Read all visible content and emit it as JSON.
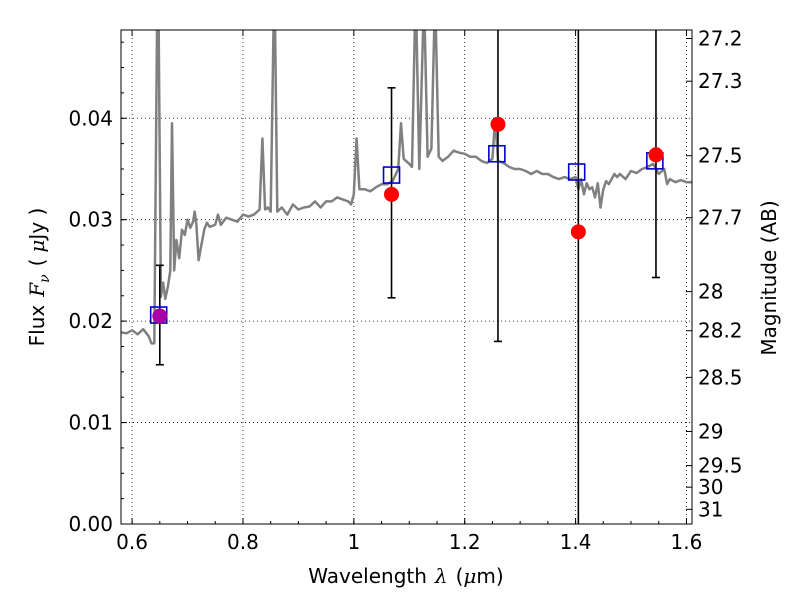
{
  "chart_data": {
    "type": "scatter",
    "xlabel": {
      "text": "Wavelength",
      "symbol": "λ",
      "unit_open": "(",
      "unit_mu": "μ",
      "unit_rest": "m)"
    },
    "ylabel": {
      "text": "Flux",
      "symbol": "F",
      "sub": "ν",
      "unit_open": "(",
      "unit_mu": "μ",
      "unit_rest": "Jy )"
    },
    "y2label": "Magnitude (AB)",
    "xlim": [
      0.58,
      1.61
    ],
    "ylim": [
      0.0,
      0.0487
    ],
    "grid": true,
    "x_ticks": [
      {
        "v": 0.6,
        "label": "0.6"
      },
      {
        "v": 0.8,
        "label": "0.8"
      },
      {
        "v": 1.0,
        "label": "1"
      },
      {
        "v": 1.2,
        "label": "1.2"
      },
      {
        "v": 1.4,
        "label": "1.4"
      },
      {
        "v": 1.6,
        "label": "1.6"
      }
    ],
    "y_ticks": [
      {
        "v": 0.0,
        "label": "0.00"
      },
      {
        "v": 0.01,
        "label": "0.01"
      },
      {
        "v": 0.02,
        "label": "0.02"
      },
      {
        "v": 0.03,
        "label": "0.03"
      },
      {
        "v": 0.04,
        "label": "0.04"
      }
    ],
    "mag_ticks": [
      {
        "v": 27.2,
        "label": "27.2"
      },
      {
        "v": 27.3,
        "label": "27.3"
      },
      {
        "v": 27.5,
        "label": "27.5"
      },
      {
        "v": 27.7,
        "label": "27.7"
      },
      {
        "v": 28,
        "label": "28"
      },
      {
        "v": 28.2,
        "label": "28.2"
      },
      {
        "v": 28.5,
        "label": "28.5"
      },
      {
        "v": 29,
        "label": "29"
      },
      {
        "v": 29.5,
        "label": "29.5"
      },
      {
        "v": 30,
        "label": "30"
      },
      {
        "v": 31,
        "label": "31"
      }
    ],
    "series": [
      {
        "type": "line",
        "color": "#808080",
        "points": [
          [
            0.58,
            0.0189
          ],
          [
            0.59,
            0.0188
          ],
          [
            0.6,
            0.0191
          ],
          [
            0.61,
            0.0187
          ],
          [
            0.62,
            0.0192
          ],
          [
            0.63,
            0.0185
          ],
          [
            0.635,
            0.0178
          ],
          [
            0.64,
            0.0178
          ],
          [
            0.645,
            0.0487
          ],
          [
            0.648,
            0.0487
          ],
          [
            0.652,
            0.0224
          ],
          [
            0.656,
            0.0238
          ],
          [
            0.66,
            0.0222
          ],
          [
            0.665,
            0.0235
          ],
          [
            0.669,
            0.025
          ],
          [
            0.672,
            0.0395
          ],
          [
            0.676,
            0.025
          ],
          [
            0.68,
            0.028
          ],
          [
            0.685,
            0.0262
          ],
          [
            0.69,
            0.029
          ],
          [
            0.695,
            0.0285
          ],
          [
            0.7,
            0.03
          ],
          [
            0.705,
            0.0292
          ],
          [
            0.71,
            0.0298
          ],
          [
            0.713,
            0.0308
          ],
          [
            0.716,
            0.0295
          ],
          [
            0.72,
            0.026
          ],
          [
            0.725,
            0.0275
          ],
          [
            0.73,
            0.029
          ],
          [
            0.735,
            0.0297
          ],
          [
            0.74,
            0.0293
          ],
          [
            0.75,
            0.0295
          ],
          [
            0.755,
            0.0305
          ],
          [
            0.76,
            0.0295
          ],
          [
            0.77,
            0.0302
          ],
          [
            0.78,
            0.03
          ],
          [
            0.79,
            0.0298
          ],
          [
            0.8,
            0.0305
          ],
          [
            0.81,
            0.0303
          ],
          [
            0.82,
            0.0305
          ],
          [
            0.83,
            0.031
          ],
          [
            0.835,
            0.038
          ],
          [
            0.84,
            0.031
          ],
          [
            0.845,
            0.0312
          ],
          [
            0.85,
            0.0308
          ],
          [
            0.855,
            0.0487
          ],
          [
            0.858,
            0.0487
          ],
          [
            0.862,
            0.0308
          ],
          [
            0.87,
            0.0312
          ],
          [
            0.88,
            0.0305
          ],
          [
            0.89,
            0.0315
          ],
          [
            0.9,
            0.031
          ],
          [
            0.91,
            0.0312
          ],
          [
            0.92,
            0.0313
          ],
          [
            0.93,
            0.0318
          ],
          [
            0.94,
            0.0312
          ],
          [
            0.95,
            0.0318
          ],
          [
            0.96,
            0.0318
          ],
          [
            0.97,
            0.0322
          ],
          [
            0.98,
            0.032
          ],
          [
            0.99,
            0.0318
          ],
          [
            0.995,
            0.0315
          ],
          [
            1.0,
            0.0325
          ],
          [
            1.005,
            0.038
          ],
          [
            1.01,
            0.033
          ],
          [
            1.02,
            0.033
          ],
          [
            1.03,
            0.0328
          ],
          [
            1.04,
            0.0332
          ],
          [
            1.05,
            0.0335
          ],
          [
            1.06,
            0.0335
          ],
          [
            1.07,
            0.0338
          ],
          [
            1.08,
            0.035
          ],
          [
            1.085,
            0.0395
          ],
          [
            1.09,
            0.036
          ],
          [
            1.1,
            0.0355
          ],
          [
            1.105,
            0.0352
          ],
          [
            1.11,
            0.0487
          ],
          [
            1.113,
            0.0487
          ],
          [
            1.118,
            0.035
          ],
          [
            1.125,
            0.0487
          ],
          [
            1.128,
            0.0487
          ],
          [
            1.133,
            0.0362
          ],
          [
            1.14,
            0.037
          ],
          [
            1.145,
            0.0487
          ],
          [
            1.148,
            0.0487
          ],
          [
            1.153,
            0.0362
          ],
          [
            1.16,
            0.0358
          ],
          [
            1.17,
            0.0362
          ],
          [
            1.18,
            0.0368
          ],
          [
            1.19,
            0.0366
          ],
          [
            1.2,
            0.0365
          ],
          [
            1.21,
            0.0362
          ],
          [
            1.22,
            0.0362
          ],
          [
            1.23,
            0.0358
          ],
          [
            1.24,
            0.0356
          ],
          [
            1.25,
            0.036
          ],
          [
            1.255,
            0.04
          ],
          [
            1.26,
            0.0358
          ],
          [
            1.27,
            0.0356
          ],
          [
            1.28,
            0.0352
          ],
          [
            1.29,
            0.035
          ],
          [
            1.3,
            0.035
          ],
          [
            1.31,
            0.0348
          ],
          [
            1.32,
            0.0345
          ],
          [
            1.33,
            0.0348
          ],
          [
            1.34,
            0.0345
          ],
          [
            1.35,
            0.0345
          ],
          [
            1.36,
            0.0342
          ],
          [
            1.37,
            0.034
          ],
          [
            1.38,
            0.0342
          ],
          [
            1.39,
            0.034
          ],
          [
            1.4,
            0.0342
          ],
          [
            1.405,
            0.033
          ],
          [
            1.41,
            0.034
          ],
          [
            1.415,
            0.0325
          ],
          [
            1.42,
            0.0336
          ],
          [
            1.425,
            0.033
          ],
          [
            1.43,
            0.0332
          ],
          [
            1.435,
            0.0322
          ],
          [
            1.44,
            0.0336
          ],
          [
            1.445,
            0.0312
          ],
          [
            1.45,
            0.033
          ],
          [
            1.455,
            0.0338
          ],
          [
            1.46,
            0.0335
          ],
          [
            1.465,
            0.034
          ],
          [
            1.47,
            0.0345
          ],
          [
            1.475,
            0.0342
          ],
          [
            1.48,
            0.0345
          ],
          [
            1.49,
            0.034
          ],
          [
            1.5,
            0.0348
          ],
          [
            1.51,
            0.0346
          ],
          [
            1.52,
            0.035
          ],
          [
            1.53,
            0.0352
          ],
          [
            1.54,
            0.0355
          ],
          [
            1.55,
            0.0345
          ],
          [
            1.56,
            0.035
          ],
          [
            1.565,
            0.0335
          ],
          [
            1.57,
            0.034
          ],
          [
            1.58,
            0.0337
          ],
          [
            1.59,
            0.0339
          ],
          [
            1.6,
            0.0337
          ],
          [
            1.61,
            0.0337
          ]
        ]
      },
      {
        "type": "errorbar",
        "color": "#ff0000",
        "points": [
          {
            "x": 0.65,
            "y": 0.0205,
            "ylo": 0.0157,
            "yhi": 0.0255
          },
          {
            "x": 1.068,
            "y": 0.0325,
            "ylo": 0.0223,
            "yhi": 0.043
          },
          {
            "x": 1.26,
            "y": 0.0394,
            "ylo": 0.018,
            "yhi": 0.0487
          },
          {
            "x": 1.405,
            "y": 0.0288,
            "ylo": 0.0,
            "yhi": 0.0487
          },
          {
            "x": 1.545,
            "y": 0.0364,
            "ylo": 0.0243,
            "yhi": 0.0487
          }
        ]
      },
      {
        "type": "scatter",
        "marker": "square",
        "color": "#0000cc",
        "points": [
          {
            "x": 0.648,
            "y": 0.0206
          },
          {
            "x": 1.068,
            "y": 0.0344
          },
          {
            "x": 1.258,
            "y": 0.0365
          },
          {
            "x": 1.402,
            "y": 0.0347
          },
          {
            "x": 1.543,
            "y": 0.0358
          }
        ]
      }
    ]
  }
}
